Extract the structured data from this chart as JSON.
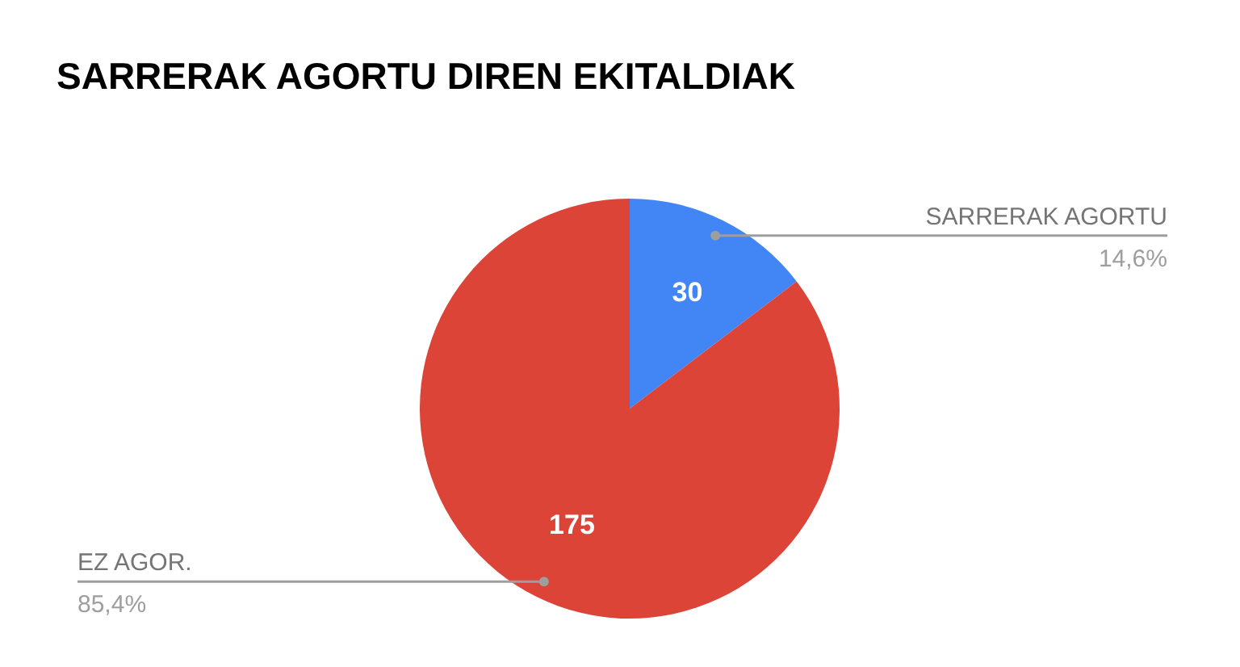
{
  "chart_data": {
    "type": "pie",
    "title": "SARRERAK AGORTU DIREN EKITALDIAK",
    "categories": [
      "SARRERAK AGORTU",
      "EZ AGOR."
    ],
    "values": [
      30,
      175
    ],
    "colors": [
      "#4285f4",
      "#db4437"
    ],
    "data_labels": true,
    "annotations": [
      "14,6%",
      "85,4%"
    ]
  }
}
